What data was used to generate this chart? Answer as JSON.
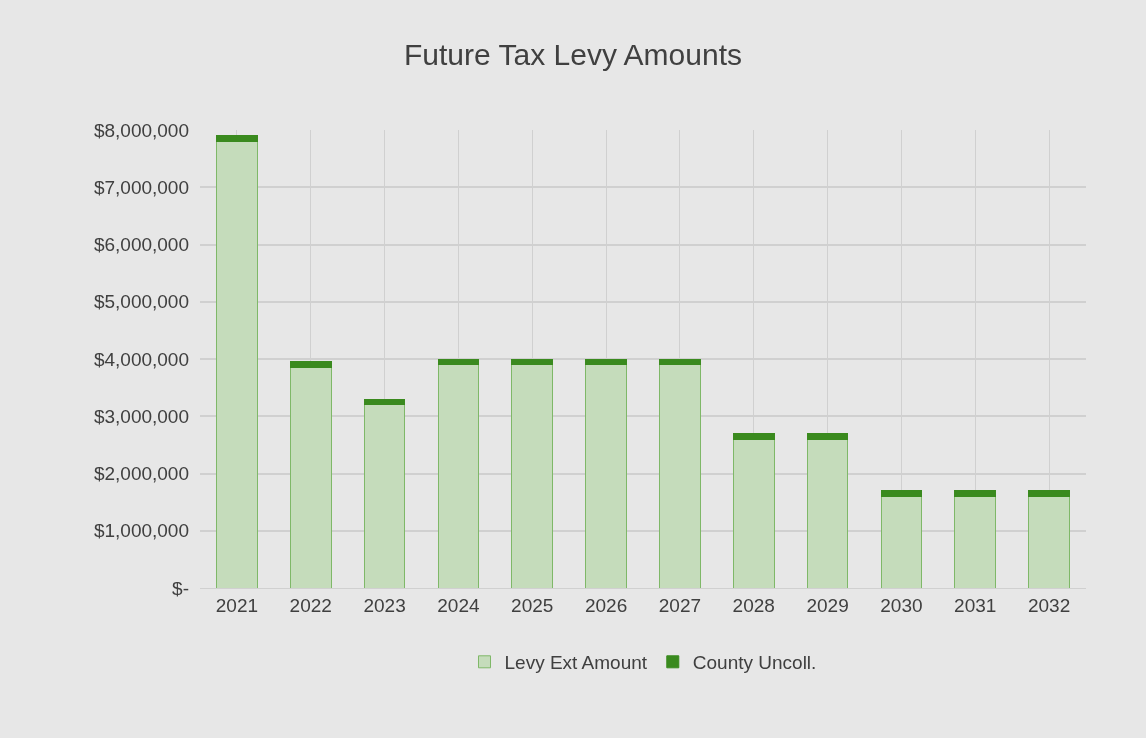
{
  "chart_data": {
    "type": "bar",
    "title": "Future Tax Levy Amounts",
    "stacked": true,
    "categories": [
      "2021",
      "2022",
      "2023",
      "2024",
      "2025",
      "2026",
      "2027",
      "2028",
      "2029",
      "2030",
      "2031",
      "2032"
    ],
    "series": [
      {
        "name": "Levy Ext Amount",
        "color": "#c5dcbb",
        "values": [
          7800000,
          3850000,
          3200000,
          3900000,
          3900000,
          3900000,
          3900000,
          2600000,
          2600000,
          1600000,
          1600000,
          1600000
        ]
      },
      {
        "name": "County Uncoll.",
        "color": "#3a8a1e",
        "values": [
          100000,
          100000,
          100000,
          100000,
          100000,
          100000,
          100000,
          100000,
          100000,
          100000,
          100000,
          100000
        ]
      }
    ],
    "ylim": [
      0,
      8000000
    ],
    "yticks": [
      {
        "value": 0,
        "label": "$-"
      },
      {
        "value": 1000000,
        "label": "$1,000,000"
      },
      {
        "value": 2000000,
        "label": "$2,000,000"
      },
      {
        "value": 3000000,
        "label": "$3,000,000"
      },
      {
        "value": 4000000,
        "label": "$4,000,000"
      },
      {
        "value": 5000000,
        "label": "$5,000,000"
      },
      {
        "value": 6000000,
        "label": "$6,000,000"
      },
      {
        "value": 7000000,
        "label": "$7,000,000"
      },
      {
        "value": 8000000,
        "label": "$8,000,000"
      }
    ],
    "grid": true,
    "legend": "bottom"
  }
}
